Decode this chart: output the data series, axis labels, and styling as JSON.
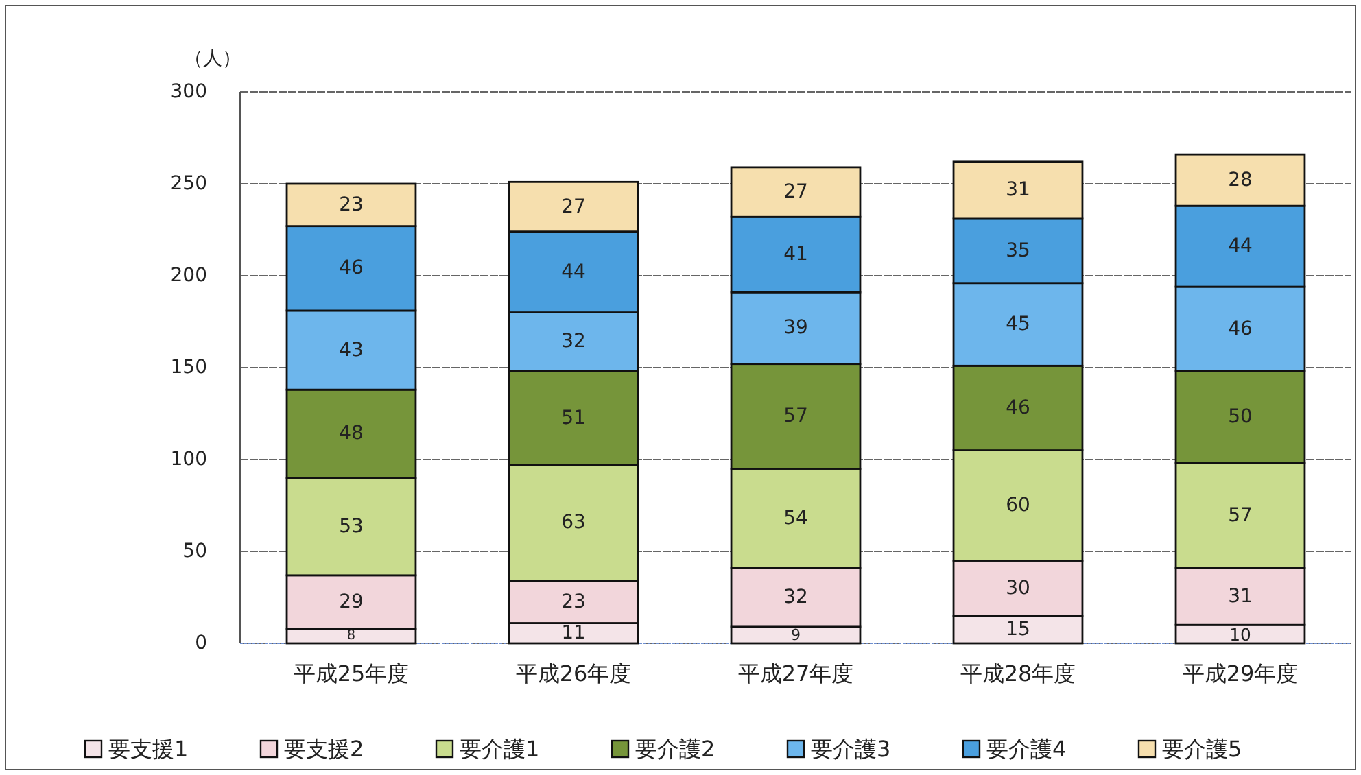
{
  "chart_data": {
    "type": "bar",
    "stacked": true,
    "ylabel": "（人）",
    "categories": [
      "平成25年度",
      "平成26年度",
      "平成27年度",
      "平成28年度",
      "平成29年度"
    ],
    "series": [
      {
        "name": "要支援1",
        "color": "#f4e4e8",
        "values": [
          8,
          11,
          9,
          15,
          10
        ]
      },
      {
        "name": "要支援2",
        "color": "#f2d6db",
        "values": [
          29,
          23,
          32,
          30,
          31
        ]
      },
      {
        "name": "要介護1",
        "color": "#c9dc8e",
        "values": [
          53,
          63,
          54,
          60,
          57
        ]
      },
      {
        "name": "要介護2",
        "color": "#76953a",
        "values": [
          48,
          51,
          57,
          46,
          50
        ]
      },
      {
        "name": "要介護3",
        "color": "#6db6ec",
        "values": [
          43,
          32,
          39,
          45,
          46
        ]
      },
      {
        "name": "要介護4",
        "color": "#4a9fde",
        "values": [
          46,
          44,
          41,
          35,
          44
        ]
      },
      {
        "name": "要介護5",
        "color": "#f6dfae",
        "values": [
          23,
          27,
          27,
          31,
          28
        ]
      }
    ],
    "ylim": [
      0,
      300
    ],
    "yticks": [
      0,
      50,
      100,
      150,
      200,
      250,
      300
    ],
    "grid": "y",
    "legend": "bottom",
    "data_labels": true
  }
}
